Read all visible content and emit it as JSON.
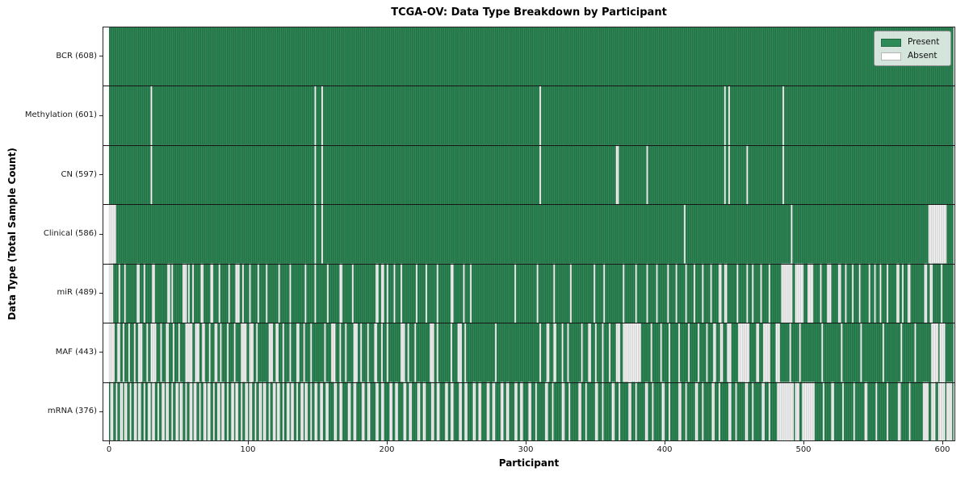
{
  "chart_data": {
    "type": "heatmap",
    "title": "TCGA-OV: Data Type Breakdown by Participant",
    "xlabel": "Participant",
    "ylabel": "Data Type (Total Sample Count)",
    "n_participants": 608,
    "x_ticks": [
      0,
      100,
      200,
      300,
      400,
      500,
      600
    ],
    "x_tick_labels": [
      "0",
      "100",
      "200",
      "300",
      "400",
      "500",
      "600"
    ],
    "legend": {
      "position": "upper right",
      "entries": [
        {
          "label": "Present",
          "color": "#2e8b57",
          "edge": "#24704622"
        },
        {
          "label": "Absent",
          "color": "#ffffff",
          "edge": "#b5b5b5"
        }
      ]
    },
    "colors": {
      "present": "#2f8d59",
      "present_edge": "#205c3b",
      "absent": "#fcfcfc",
      "absent_edge": "#c4c4c4",
      "grid": "#161616",
      "spine": "#262626",
      "background": "#ffffff"
    },
    "rows": [
      {
        "label": "BCR (608)",
        "present_count": 608,
        "absent_ranges": []
      },
      {
        "label": "Methylation (601)",
        "present_count": 601,
        "absent_ranges": [
          [
            30,
            1
          ],
          [
            148,
            1
          ],
          [
            153,
            1
          ],
          [
            310,
            1
          ],
          [
            443,
            1
          ],
          [
            446,
            1
          ],
          [
            485,
            1
          ]
        ]
      },
      {
        "label": "CN (597)",
        "present_count": 597,
        "absent_ranges": [
          [
            30,
            1
          ],
          [
            148,
            1
          ],
          [
            153,
            1
          ],
          [
            310,
            1
          ],
          [
            365,
            2
          ],
          [
            387,
            1
          ],
          [
            443,
            1
          ],
          [
            446,
            1
          ],
          [
            459,
            1
          ],
          [
            485,
            1
          ]
        ]
      },
      {
        "label": "Clinical (586)",
        "present_count": 586,
        "absent_ranges": [
          [
            0,
            5
          ],
          [
            148,
            1
          ],
          [
            153,
            1
          ],
          [
            414,
            1
          ],
          [
            491,
            1
          ],
          [
            590,
            13
          ]
        ]
      },
      {
        "label": "miR (489)",
        "present_count": 489,
        "absent_ranges": [
          [
            0,
            3
          ],
          [
            7,
            1
          ],
          [
            11,
            1
          ],
          [
            20,
            2
          ],
          [
            25,
            1
          ],
          [
            31,
            2
          ],
          [
            42,
            2
          ],
          [
            45,
            1
          ],
          [
            53,
            3
          ],
          [
            57,
            1
          ],
          [
            60,
            1
          ],
          [
            66,
            2
          ],
          [
            73,
            2
          ],
          [
            79,
            1
          ],
          [
            86,
            1
          ],
          [
            91,
            3
          ],
          [
            96,
            1
          ],
          [
            101,
            1
          ],
          [
            107,
            1
          ],
          [
            113,
            1
          ],
          [
            122,
            1
          ],
          [
            130,
            1
          ],
          [
            141,
            1
          ],
          [
            148,
            1
          ],
          [
            157,
            1
          ],
          [
            166,
            2
          ],
          [
            175,
            1
          ],
          [
            192,
            2
          ],
          [
            196,
            2
          ],
          [
            200,
            1
          ],
          [
            205,
            1
          ],
          [
            210,
            1
          ],
          [
            221,
            1
          ],
          [
            228,
            1
          ],
          [
            236,
            1
          ],
          [
            246,
            2
          ],
          [
            255,
            1
          ],
          [
            260,
            1
          ],
          [
            292,
            1
          ],
          [
            308,
            1
          ],
          [
            320,
            1
          ],
          [
            332,
            1
          ],
          [
            349,
            1
          ],
          [
            356,
            1
          ],
          [
            370,
            1
          ],
          [
            379,
            1
          ],
          [
            387,
            1
          ],
          [
            394,
            1
          ],
          [
            402,
            1
          ],
          [
            408,
            1
          ],
          [
            415,
            1
          ],
          [
            421,
            1
          ],
          [
            427,
            1
          ],
          [
            433,
            1
          ],
          [
            439,
            2
          ],
          [
            443,
            2
          ],
          [
            452,
            1
          ],
          [
            459,
            1
          ],
          [
            463,
            1
          ],
          [
            469,
            1
          ],
          [
            475,
            1
          ],
          [
            484,
            8
          ],
          [
            494,
            6
          ],
          [
            503,
            4
          ],
          [
            512,
            1
          ],
          [
            517,
            3
          ],
          [
            525,
            2
          ],
          [
            530,
            1
          ],
          [
            535,
            1
          ],
          [
            540,
            1
          ],
          [
            547,
            1
          ],
          [
            551,
            1
          ],
          [
            555,
            1
          ],
          [
            560,
            1
          ],
          [
            567,
            2
          ],
          [
            571,
            1
          ],
          [
            575,
            2
          ],
          [
            587,
            2
          ],
          [
            591,
            2
          ],
          [
            599,
            1
          ]
        ]
      },
      {
        "label": "MAF (443)",
        "present_count": 443,
        "absent_ranges": [
          [
            0,
            4
          ],
          [
            6,
            2
          ],
          [
            10,
            1
          ],
          [
            14,
            1
          ],
          [
            18,
            1
          ],
          [
            21,
            3
          ],
          [
            27,
            1
          ],
          [
            30,
            4
          ],
          [
            37,
            1
          ],
          [
            41,
            2
          ],
          [
            46,
            1
          ],
          [
            50,
            1
          ],
          [
            55,
            5
          ],
          [
            62,
            3
          ],
          [
            67,
            2
          ],
          [
            72,
            1
          ],
          [
            76,
            2
          ],
          [
            80,
            1
          ],
          [
            85,
            1
          ],
          [
            90,
            1
          ],
          [
            95,
            4
          ],
          [
            101,
            3
          ],
          [
            106,
            1
          ],
          [
            115,
            3
          ],
          [
            120,
            2
          ],
          [
            125,
            1
          ],
          [
            130,
            1
          ],
          [
            135,
            2
          ],
          [
            140,
            1
          ],
          [
            145,
            1
          ],
          [
            155,
            1
          ],
          [
            160,
            3
          ],
          [
            166,
            1
          ],
          [
            170,
            1
          ],
          [
            176,
            3
          ],
          [
            181,
            1
          ],
          [
            186,
            1
          ],
          [
            191,
            2
          ],
          [
            196,
            1
          ],
          [
            200,
            1
          ],
          [
            210,
            3
          ],
          [
            215,
            1
          ],
          [
            220,
            1
          ],
          [
            231,
            3
          ],
          [
            236,
            1
          ],
          [
            246,
            1
          ],
          [
            251,
            3
          ],
          [
            256,
            1
          ],
          [
            278,
            1
          ],
          [
            310,
            1
          ],
          [
            315,
            2
          ],
          [
            320,
            2
          ],
          [
            326,
            1
          ],
          [
            330,
            1
          ],
          [
            340,
            1
          ],
          [
            345,
            2
          ],
          [
            350,
            1
          ],
          [
            355,
            1
          ],
          [
            360,
            1
          ],
          [
            365,
            3
          ],
          [
            370,
            13
          ],
          [
            390,
            1
          ],
          [
            397,
            1
          ],
          [
            403,
            1
          ],
          [
            410,
            1
          ],
          [
            417,
            1
          ],
          [
            424,
            1
          ],
          [
            430,
            1
          ],
          [
            435,
            2
          ],
          [
            440,
            2
          ],
          [
            445,
            3
          ],
          [
            453,
            8
          ],
          [
            466,
            2
          ],
          [
            471,
            5
          ],
          [
            480,
            3
          ],
          [
            490,
            1
          ],
          [
            497,
            1
          ],
          [
            513,
            1
          ],
          [
            527,
            1
          ],
          [
            541,
            1
          ],
          [
            557,
            1
          ],
          [
            570,
            1
          ],
          [
            580,
            1
          ],
          [
            592,
            5
          ],
          [
            598,
            4
          ]
        ]
      },
      {
        "label": "mRNA (376)",
        "present_count": 376,
        "absent_ranges": [
          [
            481,
            12
          ],
          [
            494,
            3
          ],
          [
            499,
            9
          ],
          [
            514,
            1
          ],
          [
            520,
            2
          ],
          [
            528,
            1
          ],
          [
            536,
            1
          ],
          [
            544,
            2
          ],
          [
            552,
            1
          ],
          [
            560,
            1
          ],
          [
            568,
            2
          ],
          [
            576,
            1
          ],
          [
            586,
            4
          ],
          [
            592,
            3
          ],
          [
            597,
            5
          ],
          [
            603,
            4
          ]
        ],
        "absent_periodic": [
          {
            "from": 0,
            "to": 149,
            "period": 10,
            "runs": [
              [
                1,
                2
              ],
              [
                5,
                1
              ],
              [
                8,
                2
              ]
            ]
          },
          {
            "from": 150,
            "to": 299,
            "period": 10,
            "runs": [
              [
                2,
                2
              ],
              [
                6,
                2
              ]
            ]
          },
          {
            "from": 300,
            "to": 479,
            "period": 12,
            "runs": [
              [
                2,
                2
              ],
              [
                7,
                1
              ]
            ]
          }
        ]
      }
    ]
  }
}
